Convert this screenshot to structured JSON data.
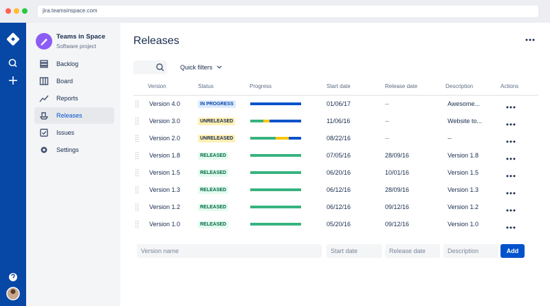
{
  "browser": {
    "url": "jira.teamsinspace.com"
  },
  "project": {
    "name": "Teams in Space",
    "type": "Software project"
  },
  "nav": [
    "Backlog",
    "Board",
    "Reports",
    "Releases",
    "Issues",
    "Settings"
  ],
  "page": {
    "title": "Releases",
    "quick_filters": "Quick filters"
  },
  "table": {
    "columns": [
      "Version",
      "Status",
      "Progress",
      "Start date",
      "Release date",
      "Description",
      "Actions"
    ],
    "rows": [
      {
        "version": "Version 4.0",
        "status": "IN PROGRESS",
        "status_bg": "#deebff",
        "status_color": "#0747a6",
        "progress": {
          "done": 0,
          "in_progress": 0,
          "todo": 100
        },
        "start_date": "01/06/17",
        "release_date": "--",
        "description": "Awesome..."
      },
      {
        "version": "Version 3.0",
        "status": "UNRELEASED",
        "status_bg": "#fff0b3",
        "status_color": "#172b4d",
        "progress": {
          "done": 25,
          "in_progress": 13,
          "todo": 62
        },
        "start_date": "11/06/16",
        "release_date": "--",
        "description": "Website to..."
      },
      {
        "version": "Version 2.0",
        "status": "UNRELEASED",
        "status_bg": "#fff0b3",
        "status_color": "#172b4d",
        "progress": {
          "done": 50,
          "in_progress": 25,
          "todo": 25
        },
        "start_date": "08/22/16",
        "release_date": "--",
        "description": "--"
      },
      {
        "version": "Version 1.8",
        "status": "RELEASED",
        "status_bg": "#e3fcef",
        "status_color": "#006644",
        "progress": {
          "done": 100,
          "in_progress": 0,
          "todo": 0
        },
        "start_date": "07/05/16",
        "release_date": "28/09/16",
        "description": "Version 1.8"
      },
      {
        "version": "Version 1.5",
        "status": "RELEASED",
        "status_bg": "#e3fcef",
        "status_color": "#006644",
        "progress": {
          "done": 100,
          "in_progress": 0,
          "todo": 0
        },
        "start_date": "06/20/16",
        "release_date": "10/01/16",
        "description": "Version 1.5"
      },
      {
        "version": "Version 1.3",
        "status": "RELEASED",
        "status_bg": "#e3fcef",
        "status_color": "#006644",
        "progress": {
          "done": 100,
          "in_progress": 0,
          "todo": 0
        },
        "start_date": "06/12/16",
        "release_date": "28/09/16",
        "description": "Version 1.3"
      },
      {
        "version": "Version 1.2",
        "status": "RELEASED",
        "status_bg": "#e3fcef",
        "status_color": "#006644",
        "progress": {
          "done": 100,
          "in_progress": 0,
          "todo": 0
        },
        "start_date": "06/12/16",
        "release_date": "09/12/16",
        "description": "Version 1.2"
      },
      {
        "version": "Version 1.0",
        "status": "RELEASED",
        "status_bg": "#e3fcef",
        "status_color": "#006644",
        "progress": {
          "done": 100,
          "in_progress": 0,
          "todo": 0
        },
        "start_date": "05/20/16",
        "release_date": "09/12/16",
        "description": "Version 1.0"
      }
    ]
  },
  "form": {
    "version_name": "Version name",
    "start_date": "Start date",
    "release_date": "Release date",
    "description": "Description",
    "button": "Add"
  }
}
